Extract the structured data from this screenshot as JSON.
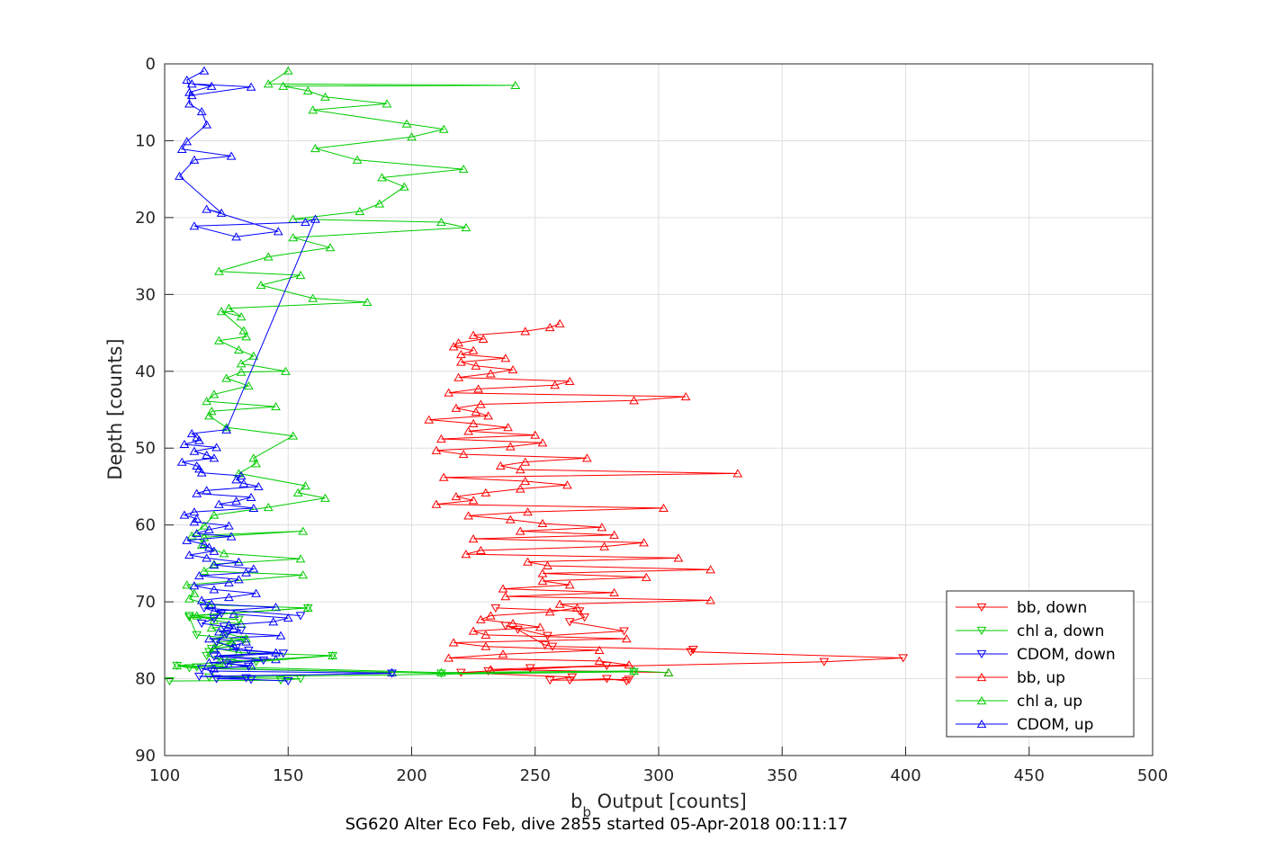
{
  "chart_data": {
    "type": "line",
    "xlabel": "b",
    "xlabel_sub": "b",
    "xlabel_suffix": " Output [counts]",
    "ylabel": "Depth [counts]",
    "footer": "SG620 Alter Eco Feb, dive 2855 started 05-Apr-2018 00:11:17",
    "xlim": [
      100,
      500
    ],
    "ylim": [
      0,
      90
    ],
    "y_reversed": true,
    "grid": true,
    "legend_position": "bottom-right",
    "xticks": [
      "100",
      "150",
      "200",
      "250",
      "300",
      "350",
      "400",
      "450",
      "500"
    ],
    "yticks": [
      "0",
      "10",
      "20",
      "30",
      "40",
      "50",
      "60",
      "70",
      "80",
      "90"
    ],
    "series": [
      {
        "name": "bb, down",
        "color": "#ff0000",
        "marker": "triangle-down",
        "x": [
          234,
          268,
          270,
          264,
          286,
          255,
          238,
          243,
          254,
          257,
          314,
          313,
          399,
          367,
          248,
          279,
          231,
          220,
          265,
          256,
          288,
          264,
          279,
          287
        ],
        "y": [
          70.8,
          71.2,
          72.0,
          72.6,
          73.8,
          74.4,
          73.1,
          73.6,
          75.6,
          75.8,
          76.2,
          76.5,
          77.3,
          77.8,
          78.6,
          78.3,
          79.0,
          79.2,
          79.8,
          80.2,
          80.1,
          80.2,
          80.0,
          80.3
        ]
      },
      {
        "name": "chl a, down",
        "color": "#00cc00",
        "marker": "triangle-down",
        "x": [
          158,
          110,
          130,
          110,
          113,
          132,
          121,
          127,
          119,
          118,
          117,
          124,
          137,
          168,
          127,
          113,
          105,
          110,
          212,
          290,
          118,
          155,
          147,
          102
        ],
        "y": [
          70.8,
          71.8,
          72.3,
          72.0,
          74.3,
          74.9,
          75.3,
          75.8,
          76.1,
          76.5,
          77.0,
          77.5,
          77.8,
          77.0,
          77.9,
          78.5,
          78.3,
          78.6,
          79.3,
          79.1,
          79.8,
          80.0,
          80.2,
          80.3
        ]
      },
      {
        "name": "CDOM, down",
        "color": "#0000ff",
        "marker": "triangle-down",
        "x": [
          155,
          116,
          123,
          120,
          115,
          124,
          131,
          125,
          121,
          129,
          134,
          148,
          120,
          140,
          125,
          134,
          115,
          119,
          192,
          114,
          133,
          121,
          135,
          150
        ],
        "y": [
          71.8,
          70.8,
          71.5,
          72.2,
          72.8,
          73.2,
          73.7,
          74.2,
          75.2,
          76.0,
          76.3,
          76.7,
          77.1,
          77.6,
          78.0,
          78.4,
          78.7,
          79.0,
          79.3,
          79.7,
          79.9,
          80.0,
          80.1,
          80.3
        ]
      },
      {
        "name": "bb, up",
        "color": "#ff0000",
        "marker": "triangle-up",
        "x": [
          304,
          232,
          288,
          276,
          215,
          237,
          276,
          230,
          217,
          287,
          230,
          225,
          252,
          241,
          228,
          232,
          256,
          267,
          260,
          321,
          238,
          282,
          237,
          264,
          253,
          295,
          253,
          321,
          255,
          247,
          308,
          222,
          228,
          278,
          294,
          225,
          282,
          244,
          277,
          253,
          240,
          223,
          247,
          302,
          210,
          225,
          218,
          230,
          244,
          263,
          246,
          213,
          332,
          244,
          236,
          246,
          271,
          221,
          210,
          240,
          253,
          212,
          250,
          223,
          239,
          225,
          207,
          231,
          226,
          218,
          228,
          290,
          311,
          215,
          227,
          258,
          264,
          219,
          232,
          241,
          226,
          220,
          238,
          220,
          225,
          217,
          219,
          229,
          225,
          246,
          256,
          260
        ],
        "y": [
          79.2,
          78.8,
          78.2,
          77.7,
          77.3,
          76.8,
          76.3,
          75.8,
          75.3,
          74.8,
          74.3,
          73.8,
          73.3,
          72.8,
          72.3,
          71.8,
          71.3,
          70.8,
          70.3,
          69.8,
          69.3,
          68.8,
          68.3,
          67.8,
          67.3,
          66.8,
          66.3,
          65.8,
          65.3,
          64.8,
          64.3,
          63.8,
          63.3,
          62.8,
          62.3,
          61.8,
          61.3,
          60.8,
          60.3,
          59.8,
          59.3,
          58.8,
          58.3,
          57.8,
          57.3,
          56.8,
          56.3,
          55.8,
          55.3,
          54.8,
          54.3,
          53.8,
          53.3,
          52.8,
          52.3,
          51.8,
          51.3,
          50.8,
          50.3,
          49.8,
          49.3,
          48.8,
          48.3,
          47.8,
          47.3,
          46.8,
          46.3,
          45.8,
          45.3,
          44.8,
          44.3,
          43.8,
          43.3,
          42.8,
          42.3,
          41.8,
          41.3,
          40.8,
          40.3,
          39.8,
          39.3,
          38.8,
          38.3,
          37.8,
          37.3,
          36.8,
          36.3,
          35.8,
          35.3,
          34.8,
          34.3,
          33.8
        ]
      },
      {
        "name": "chl a, up",
        "color": "#00cc00",
        "marker": "triangle-up",
        "x": [
          304,
          290,
          212,
          105,
          122,
          168,
          130,
          120,
          127,
          133,
          124,
          119,
          131,
          120,
          113,
          158,
          118,
          110,
          112,
          109,
          156,
          116,
          120,
          155,
          124,
          115,
          116,
          156,
          111,
          116,
          120,
          142,
          165,
          154,
          157,
          130,
          137,
          136,
          152,
          125,
          118,
          119,
          145,
          117,
          120,
          134,
          125,
          131,
          149,
          131,
          136,
          130,
          122,
          133,
          132,
          123,
          131,
          126,
          182,
          160,
          139,
          155,
          122,
          142,
          167,
          152,
          222,
          212,
          152,
          179,
          187,
          197,
          188,
          221,
          178,
          161,
          200,
          213,
          198,
          160,
          190,
          165,
          158,
          148,
          242,
          142,
          150
        ],
        "y": [
          79.2,
          79.0,
          79.2,
          78.3,
          77.9,
          77.0,
          76.6,
          76.0,
          75.2,
          74.8,
          74.0,
          73.4,
          72.9,
          72.4,
          71.8,
          70.8,
          70.4,
          69.6,
          68.9,
          67.8,
          66.5,
          66.0,
          65.1,
          64.4,
          63.7,
          62.6,
          61.6,
          60.8,
          61.4,
          60.1,
          58.7,
          57.7,
          56.5,
          55.8,
          54.9,
          53.3,
          52.0,
          51.3,
          48.4,
          47.3,
          45.8,
          45.2,
          44.6,
          43.9,
          43.0,
          41.9,
          40.9,
          40.1,
          40.0,
          39.0,
          38.0,
          37.2,
          36.0,
          35.5,
          34.7,
          32.2,
          32.9,
          31.8,
          31.0,
          30.5,
          28.8,
          27.5,
          27.0,
          25.1,
          23.9,
          22.6,
          21.3,
          20.6,
          20.2,
          19.2,
          18.2,
          16.0,
          14.8,
          13.7,
          12.5,
          11.0,
          9.5,
          8.5,
          7.8,
          6.0,
          5.2,
          4.3,
          3.5,
          2.9,
          2.8,
          2.6,
          0.9
        ],
        "note_x_ignore": ""
      },
      {
        "name": "CDOM, up",
        "color": "#0000ff",
        "marker": "triangle-up",
        "x": [
          192,
          120,
          135,
          118,
          145,
          122,
          145,
          120,
          128,
          133,
          118,
          147,
          122,
          128,
          126,
          144,
          150,
          128,
          120,
          145,
          119,
          115,
          126,
          137,
          120,
          112,
          126,
          130,
          114,
          133,
          136,
          120,
          130,
          117,
          110,
          120,
          118,
          116,
          109,
          127,
          113,
          118,
          126,
          112,
          113,
          108,
          112,
          136,
          122,
          129,
          135,
          113,
          117,
          138,
          132,
          129,
          131,
          115,
          114,
          113,
          107,
          120,
          117,
          112,
          121,
          108,
          114,
          113,
          111,
          125,
          161,
          157,
          112,
          129,
          146,
          117,
          123,
          106,
          112,
          127,
          107,
          109,
          117,
          115,
          110,
          110,
          119,
          111,
          135,
          111,
          109,
          116
        ],
        "y": [
          79.2,
          78.7,
          78.3,
          77.9,
          77.5,
          77.0,
          76.6,
          76.1,
          75.7,
          75.2,
          74.8,
          74.4,
          73.9,
          73.5,
          73.0,
          72.6,
          72.1,
          71.6,
          71.2,
          70.7,
          70.3,
          69.8,
          69.4,
          68.9,
          68.4,
          67.9,
          67.5,
          67.1,
          66.6,
          66.2,
          65.7,
          65.2,
          64.8,
          64.3,
          63.9,
          63.4,
          62.9,
          62.5,
          62.0,
          61.5,
          61.1,
          60.6,
          60.1,
          59.6,
          59.2,
          58.7,
          58.3,
          57.8,
          57.3,
          56.9,
          56.4,
          55.9,
          55.5,
          55.0,
          54.6,
          54.1,
          53.6,
          53.2,
          52.7,
          52.3,
          51.8,
          51.3,
          50.9,
          50.4,
          49.9,
          49.5,
          49.0,
          48.6,
          48.1,
          47.6,
          20.2,
          20.6,
          21.1,
          22.5,
          21.8,
          18.9,
          19.4,
          14.6,
          12.5,
          12.0,
          11.1,
          10.1,
          7.9,
          6.2,
          5.2,
          3.7,
          2.9,
          2.6,
          3.0,
          4.1,
          2.1,
          0.9
        ]
      }
    ]
  }
}
